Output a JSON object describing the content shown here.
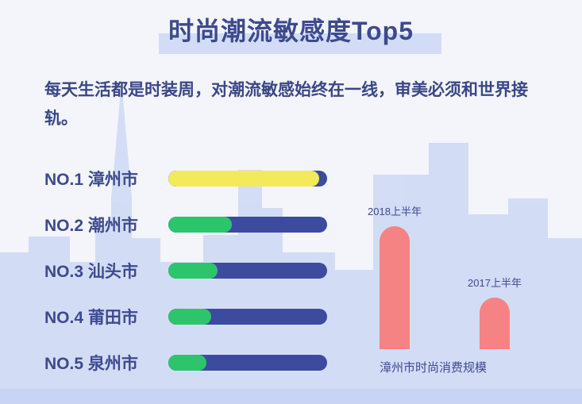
{
  "colors": {
    "background": "#f3f5fb",
    "skyline": "#c9d4f4",
    "title_text": "#3d4a8f",
    "track": "#3c4b9e",
    "top_fill": "#f3ea5a",
    "rank_fill": "#2dc56c",
    "compare_bar": "#f58383"
  },
  "title": "时尚潮流敏感度Top5",
  "intro": "每天生活都是时装周，对潮流敏感始终在一线，审美必须和世界接轨。",
  "chart_data": [
    {
      "type": "bar",
      "orientation": "horizontal",
      "title": "时尚潮流敏感度Top5",
      "categories": [
        "NO.1 漳州市",
        "NO.2 潮州市",
        "NO.3 汕头市",
        "NO.4 莆田市",
        "NO.5 泉州市"
      ],
      "values": [
        0.95,
        0.4,
        0.31,
        0.27,
        0.24
      ],
      "ylim": [
        0,
        1
      ],
      "grid": false,
      "legend": "none"
    },
    {
      "type": "bar",
      "title": "漳州市时尚消费规模",
      "categories": [
        "2018上半年",
        "2017上半年"
      ],
      "values": [
        1.0,
        0.42
      ],
      "ylim": [
        0,
        1
      ],
      "grid": false,
      "legend": "none"
    }
  ]
}
